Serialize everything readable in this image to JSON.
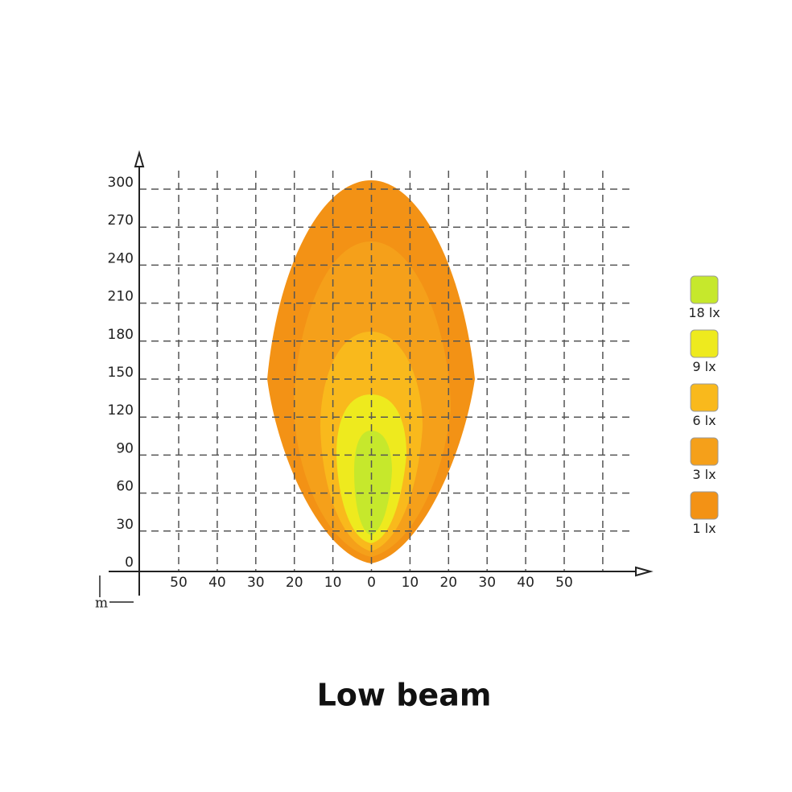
{
  "y_axis": {
    "labels": [
      "0",
      "30",
      "60",
      "90",
      "120",
      "150",
      "180",
      "210",
      "240",
      "270",
      "300"
    ]
  },
  "x_axis": {
    "labels": [
      "50",
      "40",
      "30",
      "20",
      "10",
      "0",
      "10",
      "20",
      "30",
      "40",
      "50"
    ]
  },
  "unit_label": "m",
  "legend": [
    {
      "label": "18 lx",
      "color": "#c6e82c"
    },
    {
      "label": "9 lx",
      "color": "#eeea1e"
    },
    {
      "label": "6 lx",
      "color": "#f9b91c"
    },
    {
      "label": "3 lx",
      "color": "#f5a01a"
    },
    {
      "label": "1 lx",
      "color": "#f39215"
    }
  ],
  "caption": "Low beam"
}
